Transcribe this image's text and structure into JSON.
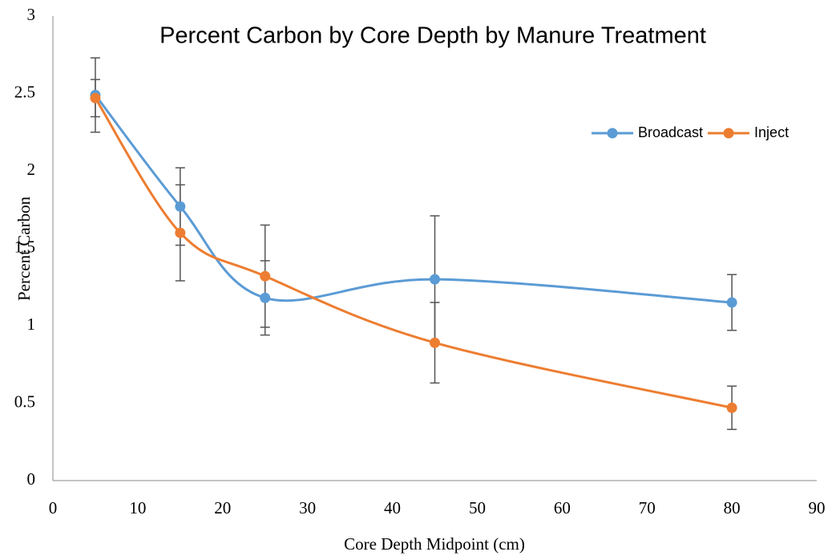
{
  "chart_data": {
    "type": "line",
    "title": "Percent Carbon by Core Depth by Manure Treatment",
    "x_label": "Core Depth Midpoint (cm)",
    "y_label": "Percent Carbon",
    "x": [
      5,
      15,
      25,
      45,
      80
    ],
    "series": [
      {
        "name": "Broadcast",
        "color": "#5b9bd5",
        "values": [
          2.49,
          1.77,
          1.18,
          1.3,
          1.15
        ],
        "errors": [
          0.24,
          0.25,
          0.24,
          0.41,
          0.18
        ]
      },
      {
        "name": "Inject",
        "color": "#ed7d31",
        "values": [
          2.47,
          1.6,
          1.32,
          0.89,
          0.47
        ],
        "errors": [
          0.12,
          0.31,
          0.33,
          0.26,
          0.14
        ]
      }
    ],
    "xlim": [
      0,
      90
    ],
    "xticks": [
      0,
      10,
      20,
      30,
      40,
      50,
      60,
      70,
      80,
      90
    ],
    "ylim": [
      0,
      3
    ],
    "yticks": [
      0,
      0.5,
      1,
      1.5,
      2,
      2.5,
      3
    ],
    "smooth": true,
    "grid": false,
    "legend": "top-right"
  }
}
